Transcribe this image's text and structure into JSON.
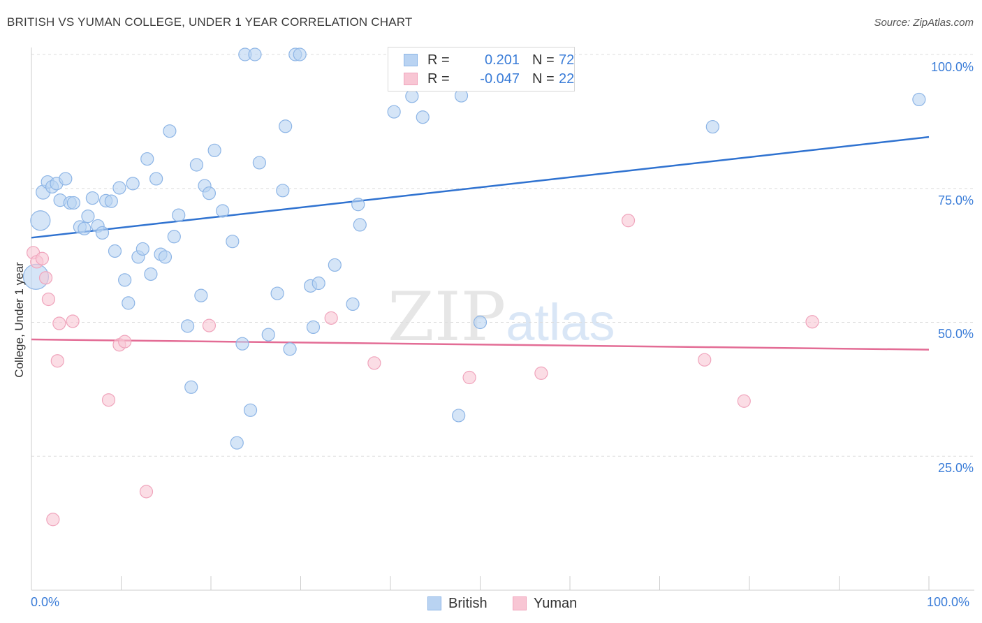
{
  "title": "BRITISH VS YUMAN COLLEGE, UNDER 1 YEAR CORRELATION CHART",
  "source": "Source: ZipAtlas.com",
  "watermark": {
    "zip": "ZIP",
    "atlas": "atlas"
  },
  "legend_top": {
    "british": {
      "r_label": "R =",
      "r_value": "0.201",
      "n_label": "N =",
      "n_value": "72"
    },
    "yuman": {
      "r_label": "R =",
      "r_value": "-0.047",
      "n_label": "N =",
      "n_value": "22"
    }
  },
  "legend_bottom": {
    "british": "British",
    "yuman": "Yuman"
  },
  "colors": {
    "british_fill": "#b9d3f2",
    "british_stroke": "#8db5e6",
    "british_line": "#2f72d0",
    "yuman_fill": "#f8c6d4",
    "yuman_stroke": "#f0a4bc",
    "yuman_line": "#e36c95",
    "tick_text": "#3b7dd8",
    "grid": "#dddddd"
  },
  "chart_data": {
    "type": "scatter",
    "title": "BRITISH VS YUMAN COLLEGE, UNDER 1 YEAR CORRELATION CHART",
    "xlabel": "",
    "ylabel": "College, Under 1 year",
    "xlim": [
      0,
      100
    ],
    "ylim": [
      0,
      100
    ],
    "x_tick_labels": [
      "0.0%",
      "100.0%"
    ],
    "y_tick_labels": [
      "100.0%",
      "75.0%",
      "50.0%",
      "25.0%"
    ],
    "y_ticks": [
      100,
      75,
      50,
      25
    ],
    "grid": "horizontal dashed",
    "legend_placement": "bottom",
    "series": [
      {
        "name": "British",
        "r": 0.201,
        "n": 72,
        "trend": {
          "x": [
            0,
            100
          ],
          "y": [
            65.8,
            84.6
          ]
        },
        "points": [
          [
            1.0,
            69.0,
            14
          ],
          [
            0.5,
            58.5,
            18
          ],
          [
            1.3,
            74.3,
            10
          ],
          [
            1.8,
            76.2,
            9
          ],
          [
            2.3,
            75.3,
            9
          ],
          [
            2.8,
            75.9,
            9
          ],
          [
            3.2,
            72.8,
            9
          ],
          [
            3.8,
            76.8,
            9
          ],
          [
            4.3,
            72.3,
            9
          ],
          [
            4.7,
            72.3,
            9
          ],
          [
            5.4,
            67.8,
            9
          ],
          [
            5.9,
            67.5,
            9
          ],
          [
            6.3,
            69.8,
            9
          ],
          [
            6.8,
            73.2,
            9
          ],
          [
            7.4,
            68.0,
            9
          ],
          [
            7.9,
            66.7,
            9
          ],
          [
            8.3,
            72.7,
            9
          ],
          [
            8.9,
            72.6,
            9
          ],
          [
            9.3,
            63.3,
            9
          ],
          [
            9.8,
            75.1,
            9
          ],
          [
            10.4,
            57.9,
            9
          ],
          [
            10.8,
            53.6,
            9
          ],
          [
            11.3,
            75.9,
            9
          ],
          [
            11.9,
            62.2,
            9
          ],
          [
            12.4,
            63.7,
            9
          ],
          [
            12.9,
            80.5,
            9
          ],
          [
            13.3,
            59.0,
            9
          ],
          [
            13.9,
            76.8,
            9
          ],
          [
            14.4,
            62.7,
            9
          ],
          [
            14.9,
            62.2,
            9
          ],
          [
            15.4,
            85.7,
            9
          ],
          [
            15.9,
            66.0,
            9
          ],
          [
            16.4,
            70.0,
            9
          ],
          [
            17.4,
            49.3,
            9
          ],
          [
            17.8,
            37.9,
            9
          ],
          [
            18.4,
            79.4,
            9
          ],
          [
            18.9,
            55.0,
            9
          ],
          [
            19.3,
            75.5,
            9
          ],
          [
            19.8,
            74.1,
            9
          ],
          [
            20.4,
            82.1,
            9
          ],
          [
            21.3,
            70.8,
            9
          ],
          [
            22.4,
            65.1,
            9
          ],
          [
            22.9,
            27.5,
            9
          ],
          [
            23.5,
            46.0,
            9
          ],
          [
            23.8,
            100.0,
            9
          ],
          [
            24.4,
            33.6,
            9
          ],
          [
            24.9,
            100.0,
            9
          ],
          [
            25.4,
            79.8,
            9
          ],
          [
            26.4,
            47.7,
            9
          ],
          [
            27.4,
            55.4,
            9
          ],
          [
            28.0,
            74.6,
            9
          ],
          [
            28.3,
            86.6,
            9
          ],
          [
            28.8,
            45.0,
            9
          ],
          [
            29.4,
            100.0,
            9
          ],
          [
            29.9,
            100.0,
            9
          ],
          [
            31.1,
            56.8,
            9
          ],
          [
            31.4,
            49.1,
            9
          ],
          [
            32.0,
            57.3,
            9
          ],
          [
            33.8,
            60.7,
            9
          ],
          [
            35.8,
            53.4,
            9
          ],
          [
            36.4,
            72.0,
            9
          ],
          [
            36.6,
            68.2,
            9
          ],
          [
            40.4,
            89.3,
            9
          ],
          [
            42.4,
            92.2,
            9
          ],
          [
            43.6,
            88.3,
            9
          ],
          [
            47.6,
            32.6,
            9
          ],
          [
            47.9,
            92.3,
            9
          ],
          [
            49.5,
            100.0,
            9
          ],
          [
            50.0,
            50.0,
            9
          ],
          [
            50.7,
            100.0,
            9
          ],
          [
            75.9,
            86.5,
            9
          ],
          [
            98.9,
            91.6,
            9
          ]
        ]
      },
      {
        "name": "Yuman",
        "r": -0.047,
        "n": 22,
        "trend": {
          "x": [
            0,
            100
          ],
          "y": [
            46.8,
            44.9
          ]
        },
        "points": [
          [
            0.2,
            63.0,
            9
          ],
          [
            0.6,
            61.3,
            9
          ],
          [
            1.2,
            61.9,
            9
          ],
          [
            1.6,
            58.3,
            9
          ],
          [
            1.9,
            54.3,
            9
          ],
          [
            2.4,
            13.2,
            9
          ],
          [
            2.9,
            42.8,
            9
          ],
          [
            3.1,
            49.8,
            9
          ],
          [
            4.6,
            50.2,
            9
          ],
          [
            8.6,
            35.5,
            9
          ],
          [
            9.8,
            45.8,
            9
          ],
          [
            10.4,
            46.4,
            9
          ],
          [
            12.8,
            18.4,
            9
          ],
          [
            19.8,
            49.4,
            9
          ],
          [
            33.4,
            50.8,
            9
          ],
          [
            38.2,
            42.4,
            9
          ],
          [
            48.8,
            39.7,
            9
          ],
          [
            56.8,
            40.5,
            9
          ],
          [
            66.5,
            69.0,
            9
          ],
          [
            75.0,
            43.0,
            9
          ],
          [
            79.4,
            35.3,
            9
          ],
          [
            87.0,
            50.1,
            9
          ]
        ]
      }
    ]
  }
}
